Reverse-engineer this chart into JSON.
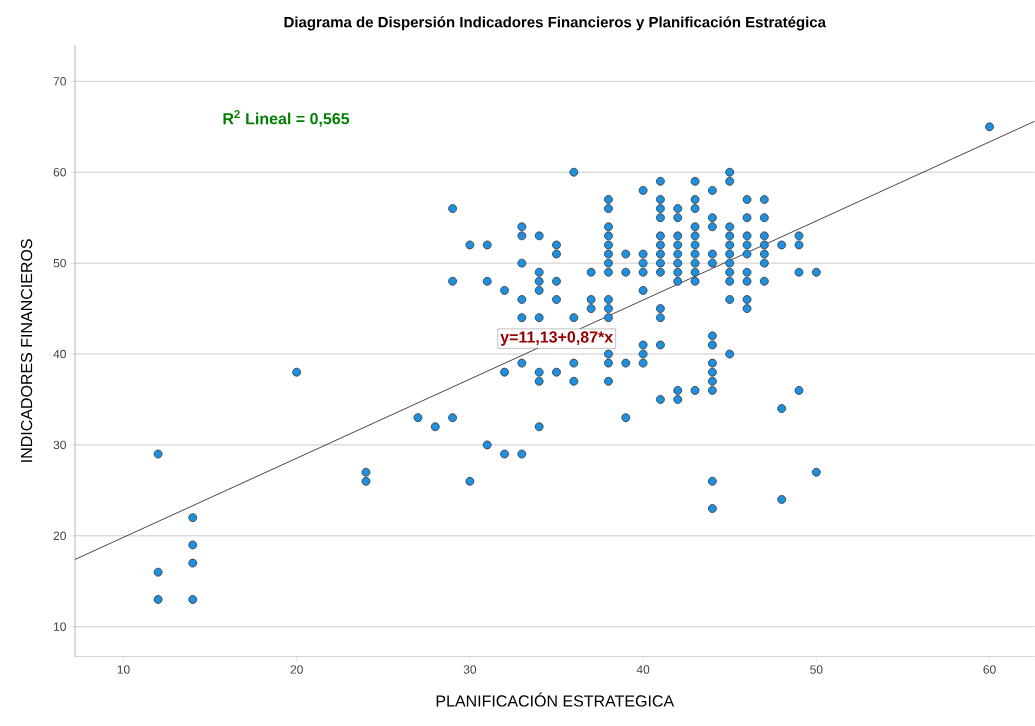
{
  "chart_data": {
    "type": "scatter",
    "title": "Diagrama de Dispersión Indicadores Financieros y Planificación Estratégica",
    "xlabel": "PLANIFICACIÓN ESTRATEGICA",
    "ylabel": "INDICADORES FINANCIEROS",
    "annotations": [
      "R$^{2}$ Lineal = 0,565",
      "y=11,13+0,87*x"
    ],
    "xlim": [
      7.2,
      62.6
    ],
    "ylim": [
      6.7,
      74
    ],
    "xticks": [
      10,
      20,
      30,
      40,
      50,
      60
    ],
    "yticks": [
      10,
      20,
      30,
      40,
      50,
      60,
      70
    ],
    "grid": "y",
    "series": [
      {
        "marker": "circle",
        "color": "#1e90e0",
        "x": [
          12,
          12,
          12,
          14,
          14,
          14,
          14,
          20,
          24,
          24,
          27,
          28,
          29,
          29,
          29,
          30,
          30,
          31,
          31,
          31,
          32,
          32,
          32,
          33,
          33,
          33,
          33,
          33,
          33,
          33,
          34,
          34,
          34,
          34,
          34,
          34,
          34,
          34,
          35,
          35,
          35,
          35,
          35,
          36,
          36,
          36,
          36,
          37,
          37,
          37,
          38,
          38,
          38,
          38,
          38,
          38,
          38,
          38,
          38,
          38,
          38,
          38,
          38,
          38,
          39,
          39,
          39,
          39,
          40,
          40,
          40,
          40,
          40,
          40,
          40,
          40,
          41,
          41,
          41,
          41,
          41,
          41,
          41,
          41,
          41,
          41,
          41,
          41,
          41,
          42,
          42,
          42,
          42,
          42,
          42,
          42,
          42,
          42,
          42,
          43,
          43,
          43,
          43,
          43,
          43,
          43,
          43,
          43,
          43,
          43,
          44,
          44,
          44,
          44,
          44,
          44,
          44,
          44,
          44,
          44,
          44,
          44,
          44,
          45,
          45,
          45,
          45,
          45,
          45,
          45,
          45,
          45,
          45,
          45,
          46,
          46,
          46,
          46,
          46,
          46,
          46,
          46,
          46,
          47,
          47,
          47,
          47,
          47,
          47,
          47,
          48,
          48,
          48,
          49,
          49,
          49,
          49,
          50,
          50,
          60
        ],
        "values": [
          29,
          16,
          13,
          22,
          19,
          17,
          13,
          38,
          27,
          26,
          33,
          32,
          56,
          48,
          33,
          52,
          26,
          52,
          48,
          30,
          47,
          38,
          29,
          54,
          53,
          50,
          46,
          44,
          39,
          29,
          53,
          49,
          48,
          47,
          44,
          38,
          37,
          32,
          52,
          51,
          48,
          46,
          38,
          60,
          44,
          39,
          37,
          49,
          46,
          45,
          57,
          56,
          54,
          53,
          52,
          51,
          50,
          49,
          46,
          45,
          44,
          40,
          39,
          37,
          51,
          49,
          39,
          33,
          58,
          51,
          50,
          49,
          47,
          41,
          40,
          39,
          59,
          57,
          56,
          55,
          53,
          52,
          51,
          50,
          49,
          45,
          44,
          41,
          35,
          56,
          55,
          53,
          52,
          51,
          50,
          49,
          48,
          36,
          35,
          59,
          57,
          56,
          54,
          53,
          52,
          51,
          50,
          49,
          48,
          36,
          58,
          55,
          54,
          51,
          50,
          42,
          41,
          39,
          38,
          37,
          36,
          26,
          23,
          60,
          59,
          54,
          53,
          52,
          51,
          50,
          49,
          48,
          46,
          40,
          57,
          55,
          53,
          52,
          51,
          49,
          48,
          46,
          45,
          57,
          55,
          53,
          52,
          51,
          50,
          48,
          52,
          34,
          24,
          53,
          52,
          49,
          36,
          49,
          27,
          65
        ]
      },
      {
        "type": "line",
        "marker": "none",
        "color": "#333333",
        "x": [
          7.2,
          62.6
        ],
        "values": [
          17.4,
          65.6
        ]
      }
    ]
  }
}
